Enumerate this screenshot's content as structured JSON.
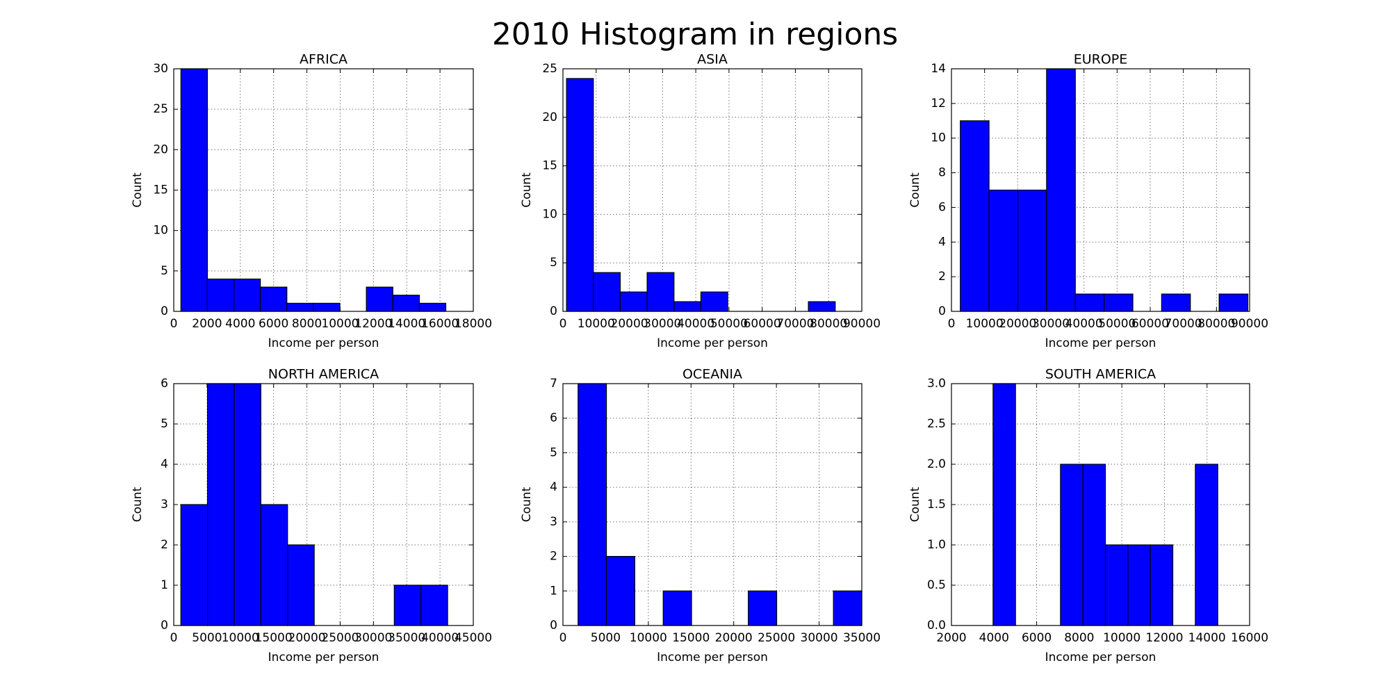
{
  "title": "2010 Histogram in regions",
  "chart_data": [
    {
      "type": "histogram",
      "title": "AFRICA",
      "xlabel": "Income per person",
      "ylabel": "Count",
      "color": "#0000ff",
      "grid": true,
      "bins": [
        430,
        2022,
        3614,
        5206,
        6798,
        8390,
        9982,
        11574,
        13166,
        14758,
        16350
      ],
      "values": [
        30,
        4,
        4,
        3,
        1,
        1,
        0,
        3,
        2,
        1
      ],
      "xlim": [
        0,
        18000
      ],
      "xticks": [
        0,
        2000,
        4000,
        6000,
        8000,
        10000,
        12000,
        14000,
        16000,
        18000
      ],
      "ylim": [
        0,
        30
      ],
      "yticks": [
        0,
        5,
        10,
        15,
        20,
        25,
        30
      ]
    },
    {
      "type": "histogram",
      "title": "ASIA",
      "xlabel": "Income per person",
      "ylabel": "Count",
      "color": "#0000ff",
      "grid": true,
      "bins": [
        1070,
        9163,
        17256,
        25349,
        33442,
        41535,
        49628,
        57721,
        65814,
        73907,
        82000
      ],
      "values": [
        24,
        4,
        2,
        4,
        1,
        2,
        0,
        0,
        0,
        1
      ],
      "xlim": [
        0,
        90000
      ],
      "xticks": [
        0,
        10000,
        20000,
        30000,
        40000,
        50000,
        60000,
        70000,
        80000,
        90000
      ],
      "ylim": [
        0,
        25
      ],
      "yticks": [
        0,
        5,
        10,
        15,
        20,
        25
      ]
    },
    {
      "type": "histogram",
      "title": "EUROPE",
      "xlabel": "Income per person",
      "ylabel": "Count",
      "color": "#0000ff",
      "grid": true,
      "bins": [
        2670,
        11351,
        20032,
        28713,
        37394,
        46075,
        54756,
        63437,
        72118,
        80799,
        89480
      ],
      "values": [
        11,
        7,
        7,
        14,
        1,
        1,
        0,
        1,
        0,
        1
      ],
      "xlim": [
        0,
        90000
      ],
      "xticks": [
        0,
        10000,
        20000,
        30000,
        40000,
        50000,
        60000,
        70000,
        80000,
        90000
      ],
      "ylim": [
        0,
        14
      ],
      "yticks": [
        0,
        2,
        4,
        6,
        8,
        10,
        12,
        14
      ]
    },
    {
      "type": "histogram",
      "title": "NORTH AMERICA",
      "xlabel": "Income per person",
      "ylabel": "Count",
      "color": "#0000ff",
      "grid": true,
      "bins": [
        1065,
        5073,
        9081,
        13089,
        17097,
        21105,
        25113,
        29121,
        33129,
        37137,
        41145
      ],
      "values": [
        3,
        6,
        6,
        3,
        2,
        0,
        0,
        0,
        1,
        1
      ],
      "xlim": [
        0,
        45000
      ],
      "xticks": [
        0,
        5000,
        10000,
        15000,
        20000,
        25000,
        30000,
        35000,
        40000,
        45000
      ],
      "ylim": [
        0,
        6
      ],
      "yticks": [
        0,
        1,
        2,
        3,
        4,
        5,
        6
      ]
    },
    {
      "type": "histogram",
      "title": "OCEANIA",
      "xlabel": "Income per person",
      "ylabel": "Count",
      "color": "#0000ff",
      "grid": true,
      "bins": [
        1770,
        5093,
        8416,
        11739,
        15062,
        18385,
        21708,
        25031,
        28354,
        31677,
        35000
      ],
      "values": [
        7,
        2,
        0,
        1,
        0,
        0,
        1,
        0,
        0,
        1
      ],
      "xlim": [
        0,
        35000
      ],
      "xticks": [
        0,
        5000,
        10000,
        15000,
        20000,
        25000,
        30000,
        35000
      ],
      "ylim": [
        0,
        7
      ],
      "yticks": [
        0,
        1,
        2,
        3,
        4,
        5,
        6,
        7
      ]
    },
    {
      "type": "histogram",
      "title": "SOUTH AMERICA",
      "xlabel": "Income per person",
      "ylabel": "Count",
      "color": "#0000ff",
      "grid": true,
      "bins": [
        3953,
        5008,
        6063,
        7119,
        8174,
        9229,
        10284,
        11339,
        12395,
        13450,
        14505
      ],
      "values": [
        3,
        0,
        0,
        2,
        2,
        1,
        1,
        1,
        0,
        2
      ],
      "xlim": [
        2000,
        16000
      ],
      "xticks": [
        2000,
        4000,
        6000,
        8000,
        10000,
        12000,
        14000,
        16000
      ],
      "ylim": [
        0,
        3
      ],
      "yticks": [
        {
          "value": 0,
          "label": "0.0"
        },
        0.5,
        {
          "value": 1,
          "label": "1.0"
        },
        1.5,
        {
          "value": 2,
          "label": "2.0"
        },
        2.5,
        {
          "value": 3,
          "label": "3.0"
        }
      ]
    }
  ]
}
